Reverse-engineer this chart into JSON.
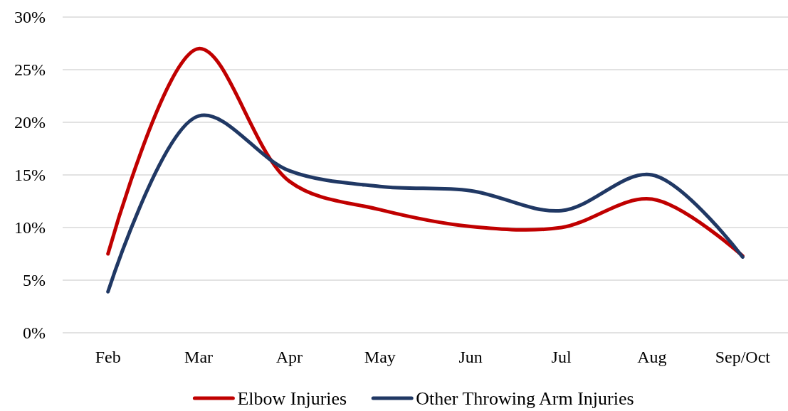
{
  "chart_data": {
    "type": "line",
    "categories": [
      "Feb",
      "Mar",
      "Apr",
      "May",
      "Jun",
      "Jul",
      "Aug",
      "Sep/Oct"
    ],
    "series": [
      {
        "name": "Elbow Injuries",
        "color": "#c00000",
        "values": [
          7.5,
          27,
          14.4,
          11.7,
          10.1,
          10,
          12.7,
          7.3
        ]
      },
      {
        "name": "Other Throwing Arm Injuries",
        "color": "#203864",
        "values": [
          3.9,
          20.6,
          15.4,
          13.9,
          13.5,
          11.6,
          15,
          7.2
        ]
      }
    ],
    "ylim": [
      0,
      30
    ],
    "yticks": [
      {
        "value": 0,
        "label": "0%"
      },
      {
        "value": 5,
        "label": "5%"
      },
      {
        "value": 10,
        "label": "10%"
      },
      {
        "value": 15,
        "label": "15%"
      },
      {
        "value": 20,
        "label": "20%"
      },
      {
        "value": 25,
        "label": "25%"
      },
      {
        "value": 30,
        "label": "30%"
      }
    ],
    "grid": "y",
    "legend": "bottom",
    "marker": "none",
    "line_style": "solid"
  }
}
